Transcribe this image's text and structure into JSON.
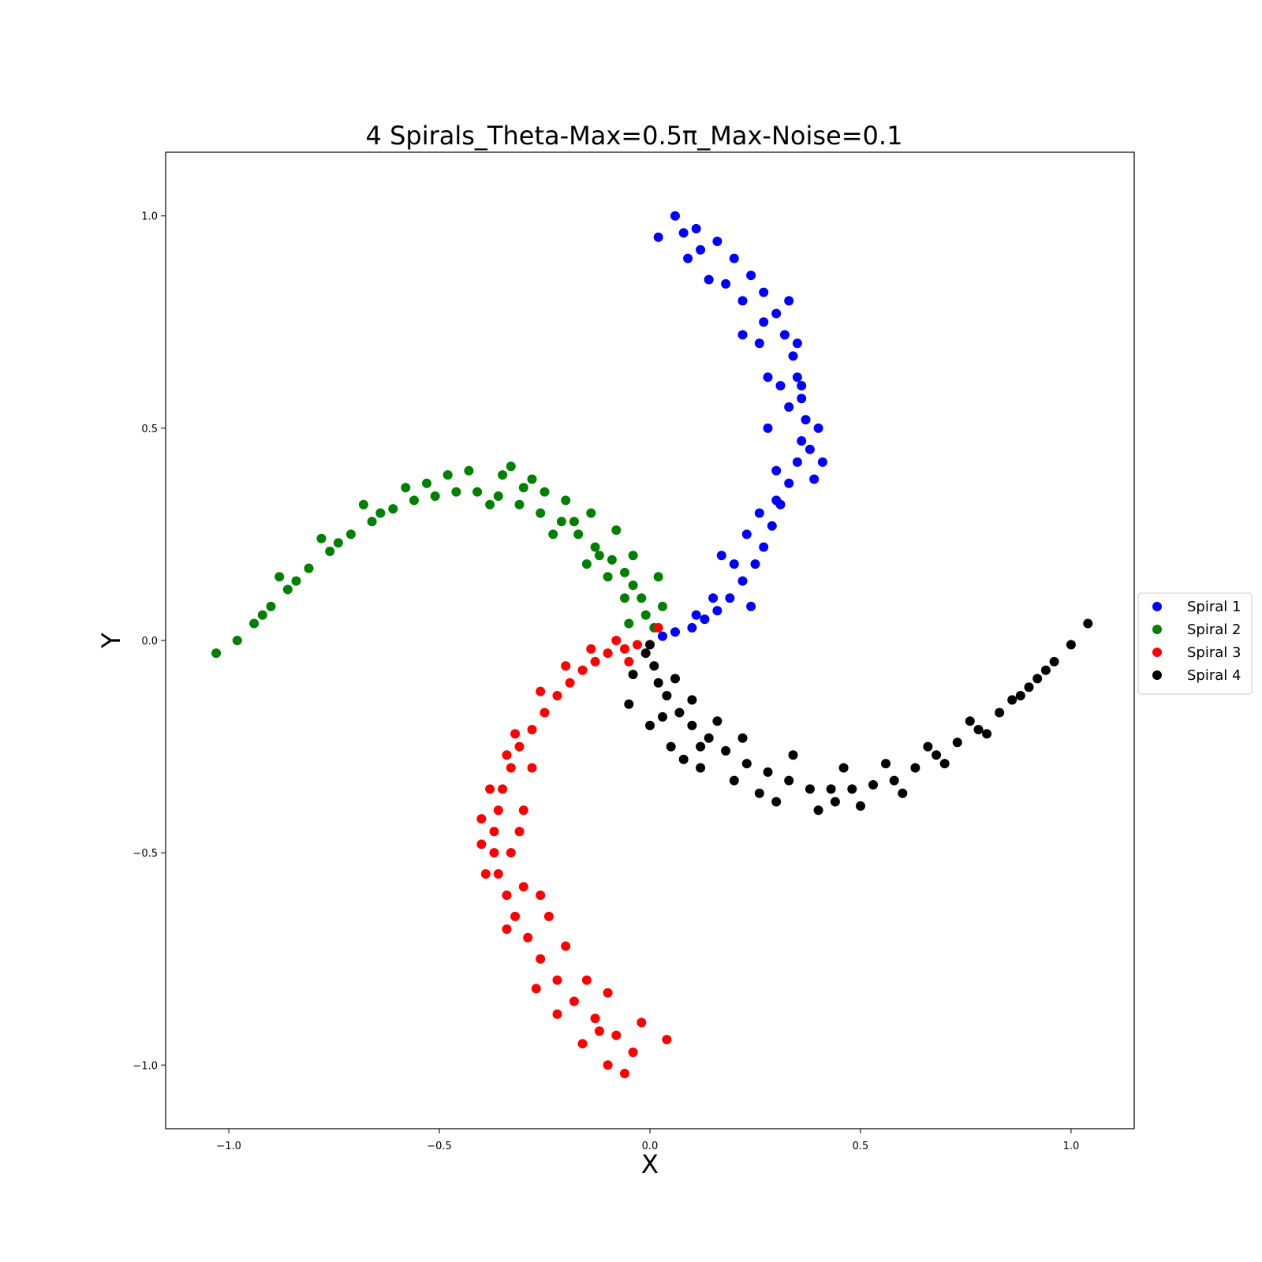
{
  "chart_data": {
    "type": "scatter",
    "title": "4 Spirals_Theta-Max=0.5π_Max-Noise=0.1",
    "xlabel": "X",
    "ylabel": "Y",
    "xlim": [
      -1.15,
      1.15
    ],
    "ylim": [
      -1.15,
      1.15
    ],
    "xticks": [
      -1.0,
      -0.5,
      0.0,
      0.5,
      1.0
    ],
    "xtick_labels": [
      "−1.0",
      "−0.5",
      "0.0",
      "0.5",
      "1.0"
    ],
    "yticks": [
      -1.0,
      -0.5,
      0.0,
      0.5,
      1.0
    ],
    "ytick_labels": [
      "−1.0",
      "−0.5",
      "0.0",
      "0.5",
      "1.0"
    ],
    "grid": false,
    "legend_position": "center-right-outside",
    "series": [
      {
        "name": "Spiral 1",
        "color": "#0000ff",
        "points": [
          [
            0.03,
            0.01
          ],
          [
            0.06,
            0.02
          ],
          [
            0.1,
            0.03
          ],
          [
            0.13,
            0.05
          ],
          [
            0.16,
            0.07
          ],
          [
            0.19,
            0.1
          ],
          [
            0.22,
            0.14
          ],
          [
            0.25,
            0.18
          ],
          [
            0.27,
            0.22
          ],
          [
            0.29,
            0.27
          ],
          [
            0.31,
            0.32
          ],
          [
            0.33,
            0.37
          ],
          [
            0.35,
            0.42
          ],
          [
            0.36,
            0.47
          ],
          [
            0.37,
            0.52
          ],
          [
            0.36,
            0.57
          ],
          [
            0.35,
            0.62
          ],
          [
            0.34,
            0.67
          ],
          [
            0.32,
            0.72
          ],
          [
            0.3,
            0.77
          ],
          [
            0.27,
            0.82
          ],
          [
            0.24,
            0.86
          ],
          [
            0.2,
            0.9
          ],
          [
            0.16,
            0.94
          ],
          [
            0.11,
            0.97
          ],
          [
            0.06,
            1.0
          ],
          [
            0.02,
            0.95
          ],
          [
            0.09,
            0.9
          ],
          [
            0.14,
            0.85
          ],
          [
            0.22,
            0.8
          ],
          [
            0.26,
            0.7
          ],
          [
            0.31,
            0.6
          ],
          [
            0.38,
            0.45
          ],
          [
            0.4,
            0.5
          ],
          [
            0.33,
            0.55
          ],
          [
            0.28,
            0.62
          ],
          [
            0.33,
            0.8
          ],
          [
            0.27,
            0.75
          ],
          [
            0.22,
            0.72
          ],
          [
            0.18,
            0.84
          ],
          [
            0.12,
            0.92
          ],
          [
            0.08,
            0.96
          ],
          [
            0.3,
            0.4
          ],
          [
            0.26,
            0.3
          ],
          [
            0.23,
            0.25
          ],
          [
            0.2,
            0.18
          ],
          [
            0.15,
            0.1
          ],
          [
            0.11,
            0.06
          ],
          [
            0.41,
            0.42
          ],
          [
            0.39,
            0.38
          ],
          [
            0.35,
            0.7
          ],
          [
            0.17,
            0.2
          ],
          [
            0.24,
            0.08
          ],
          [
            0.3,
            0.33
          ],
          [
            0.36,
            0.6
          ],
          [
            0.28,
            0.5
          ]
        ]
      },
      {
        "name": "Spiral 2",
        "color": "#008000",
        "points": [
          [
            0.01,
            0.03
          ],
          [
            -0.01,
            0.06
          ],
          [
            -0.02,
            0.1
          ],
          [
            -0.04,
            0.13
          ],
          [
            -0.06,
            0.16
          ],
          [
            -0.09,
            0.19
          ],
          [
            -0.13,
            0.22
          ],
          [
            -0.17,
            0.25
          ],
          [
            -0.21,
            0.28
          ],
          [
            -0.26,
            0.3
          ],
          [
            -0.31,
            0.32
          ],
          [
            -0.36,
            0.34
          ],
          [
            -0.41,
            0.35
          ],
          [
            -0.46,
            0.35
          ],
          [
            -0.51,
            0.34
          ],
          [
            -0.56,
            0.33
          ],
          [
            -0.61,
            0.31
          ],
          [
            -0.66,
            0.28
          ],
          [
            -0.71,
            0.25
          ],
          [
            -0.76,
            0.21
          ],
          [
            -0.81,
            0.17
          ],
          [
            -0.86,
            0.12
          ],
          [
            -0.9,
            0.08
          ],
          [
            -0.94,
            0.04
          ],
          [
            -0.98,
            0.0
          ],
          [
            -1.03,
            -0.03
          ],
          [
            -0.92,
            0.06
          ],
          [
            -0.84,
            0.14
          ],
          [
            -0.74,
            0.23
          ],
          [
            -0.64,
            0.3
          ],
          [
            -0.53,
            0.37
          ],
          [
            -0.43,
            0.4
          ],
          [
            -0.35,
            0.39
          ],
          [
            -0.28,
            0.38
          ],
          [
            -0.2,
            0.33
          ],
          [
            -0.14,
            0.3
          ],
          [
            -0.08,
            0.26
          ],
          [
            -0.04,
            0.2
          ],
          [
            0.02,
            0.15
          ],
          [
            -0.06,
            0.1
          ],
          [
            -0.1,
            0.15
          ],
          [
            -0.15,
            0.18
          ],
          [
            -0.23,
            0.25
          ],
          [
            -0.3,
            0.36
          ],
          [
            -0.38,
            0.32
          ],
          [
            -0.48,
            0.39
          ],
          [
            -0.58,
            0.36
          ],
          [
            -0.68,
            0.32
          ],
          [
            -0.78,
            0.24
          ],
          [
            -0.88,
            0.15
          ],
          [
            -0.12,
            0.2
          ],
          [
            -0.18,
            0.28
          ],
          [
            0.03,
            0.08
          ],
          [
            -0.05,
            0.04
          ],
          [
            -0.25,
            0.35
          ],
          [
            -0.33,
            0.41
          ]
        ]
      },
      {
        "name": "Spiral 3",
        "color": "#ff0000",
        "points": [
          [
            -0.03,
            -0.01
          ],
          [
            -0.06,
            -0.02
          ],
          [
            -0.1,
            -0.03
          ],
          [
            -0.13,
            -0.05
          ],
          [
            -0.16,
            -0.07
          ],
          [
            -0.19,
            -0.1
          ],
          [
            -0.22,
            -0.13
          ],
          [
            -0.25,
            -0.17
          ],
          [
            -0.28,
            -0.21
          ],
          [
            -0.31,
            -0.25
          ],
          [
            -0.33,
            -0.3
          ],
          [
            -0.35,
            -0.35
          ],
          [
            -0.36,
            -0.4
          ],
          [
            -0.37,
            -0.45
          ],
          [
            -0.37,
            -0.5
          ],
          [
            -0.36,
            -0.55
          ],
          [
            -0.34,
            -0.6
          ],
          [
            -0.32,
            -0.65
          ],
          [
            -0.29,
            -0.7
          ],
          [
            -0.26,
            -0.75
          ],
          [
            -0.22,
            -0.8
          ],
          [
            -0.18,
            -0.85
          ],
          [
            -0.13,
            -0.89
          ],
          [
            -0.08,
            -0.93
          ],
          [
            -0.04,
            -0.97
          ],
          [
            -0.06,
            -1.02
          ],
          [
            0.04,
            -0.94
          ],
          [
            -0.02,
            -0.9
          ],
          [
            -0.1,
            -0.83
          ],
          [
            -0.15,
            -0.8
          ],
          [
            -0.2,
            -0.72
          ],
          [
            -0.24,
            -0.65
          ],
          [
            -0.3,
            -0.58
          ],
          [
            -0.33,
            -0.5
          ],
          [
            -0.4,
            -0.42
          ],
          [
            -0.3,
            -0.4
          ],
          [
            -0.28,
            -0.3
          ],
          [
            -0.32,
            -0.22
          ],
          [
            -0.26,
            -0.12
          ],
          [
            -0.2,
            -0.06
          ],
          [
            -0.14,
            -0.02
          ],
          [
            -0.08,
            0.0
          ],
          [
            -0.1,
            -1.0
          ],
          [
            -0.16,
            -0.95
          ],
          [
            -0.22,
            -0.88
          ],
          [
            -0.27,
            -0.82
          ],
          [
            -0.34,
            -0.68
          ],
          [
            -0.39,
            -0.55
          ],
          [
            -0.4,
            -0.48
          ],
          [
            -0.38,
            -0.35
          ],
          [
            -0.34,
            -0.27
          ],
          [
            0.02,
            0.03
          ],
          [
            -0.12,
            -0.92
          ],
          [
            -0.26,
            -0.6
          ],
          [
            -0.31,
            -0.45
          ],
          [
            -0.05,
            -0.05
          ]
        ]
      },
      {
        "name": "Spiral 4",
        "color": "#000000",
        "points": [
          [
            -0.01,
            -0.03
          ],
          [
            0.01,
            -0.06
          ],
          [
            0.02,
            -0.1
          ],
          [
            0.04,
            -0.13
          ],
          [
            0.07,
            -0.17
          ],
          [
            0.1,
            -0.2
          ],
          [
            0.14,
            -0.23
          ],
          [
            0.18,
            -0.26
          ],
          [
            0.23,
            -0.29
          ],
          [
            0.28,
            -0.31
          ],
          [
            0.33,
            -0.33
          ],
          [
            0.38,
            -0.35
          ],
          [
            0.43,
            -0.35
          ],
          [
            0.48,
            -0.35
          ],
          [
            0.53,
            -0.34
          ],
          [
            0.58,
            -0.33
          ],
          [
            0.63,
            -0.3
          ],
          [
            0.68,
            -0.27
          ],
          [
            0.73,
            -0.24
          ],
          [
            0.78,
            -0.21
          ],
          [
            0.83,
            -0.17
          ],
          [
            0.88,
            -0.13
          ],
          [
            0.92,
            -0.09
          ],
          [
            0.96,
            -0.05
          ],
          [
            1.0,
            -0.01
          ],
          [
            1.04,
            0.04
          ],
          [
            -0.04,
            -0.08
          ],
          [
            -0.05,
            -0.15
          ],
          [
            0.0,
            -0.2
          ],
          [
            0.05,
            -0.25
          ],
          [
            0.12,
            -0.3
          ],
          [
            0.2,
            -0.33
          ],
          [
            0.3,
            -0.38
          ],
          [
            0.4,
            -0.4
          ],
          [
            0.5,
            -0.39
          ],
          [
            0.6,
            -0.36
          ],
          [
            0.7,
            -0.29
          ],
          [
            0.8,
            -0.22
          ],
          [
            0.9,
            -0.11
          ],
          [
            0.06,
            -0.09
          ],
          [
            0.1,
            -0.14
          ],
          [
            0.16,
            -0.19
          ],
          [
            0.22,
            -0.23
          ],
          [
            0.34,
            -0.27
          ],
          [
            0.46,
            -0.3
          ],
          [
            0.56,
            -0.29
          ],
          [
            0.66,
            -0.25
          ],
          [
            0.76,
            -0.19
          ],
          [
            0.86,
            -0.14
          ],
          [
            0.94,
            -0.07
          ],
          [
            0.03,
            -0.18
          ],
          [
            0.08,
            -0.28
          ],
          [
            0.26,
            -0.36
          ],
          [
            0.44,
            -0.38
          ],
          [
            0.0,
            -0.01
          ],
          [
            0.12,
            -0.25
          ]
        ]
      }
    ]
  }
}
